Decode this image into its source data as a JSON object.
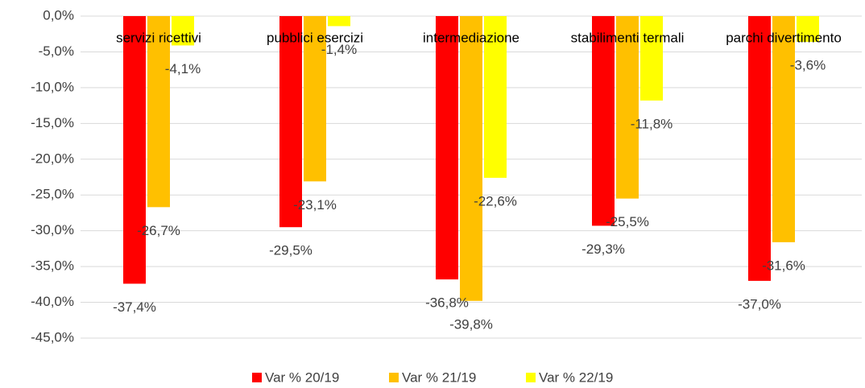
{
  "chart_data": {
    "type": "bar",
    "categories": [
      "servizi ricettivi",
      "pubblici esercizi",
      "intermediazione",
      "stabilimenti termali",
      "parchi divertimento"
    ],
    "series": [
      {
        "name": "Var % 20/19",
        "color": "#ff0000",
        "values": [
          -37.4,
          -29.5,
          -36.8,
          -29.3,
          -37.0
        ],
        "value_labels": [
          "-37,4%",
          "-29,5%",
          "-36,8%",
          "-29,3%",
          "-37,0%"
        ]
      },
      {
        "name": "Var % 21/19",
        "color": "#ffc000",
        "values": [
          -26.7,
          -23.1,
          -39.8,
          -25.5,
          -31.6
        ],
        "value_labels": [
          "-26,7%",
          "-23,1%",
          "-39,8%",
          "-25,5%",
          "-31,6%"
        ]
      },
      {
        "name": "Var % 22/19",
        "color": "#ffff00",
        "values": [
          -4.1,
          -1.4,
          -22.6,
          -11.8,
          -3.6
        ],
        "value_labels": [
          "-4,1%",
          "-1,4%",
          "-22,6%",
          "-11,8%",
          "-3,6%"
        ]
      }
    ],
    "ylim": [
      -45,
      0
    ],
    "yticks": [
      {
        "value": 0,
        "label": "0,0%"
      },
      {
        "value": -5,
        "label": "-5,0%"
      },
      {
        "value": -10,
        "label": "-10,0%"
      },
      {
        "value": -15,
        "label": "-15,0%"
      },
      {
        "value": -20,
        "label": "-20,0%"
      },
      {
        "value": -25,
        "label": "-25,0%"
      },
      {
        "value": -30,
        "label": "-30,0%"
      },
      {
        "value": -35,
        "label": "-35,0%"
      },
      {
        "value": -40,
        "label": "-40,0%"
      },
      {
        "value": -45,
        "label": "-45,0%"
      }
    ],
    "grid": true,
    "legend": "bottom"
  }
}
